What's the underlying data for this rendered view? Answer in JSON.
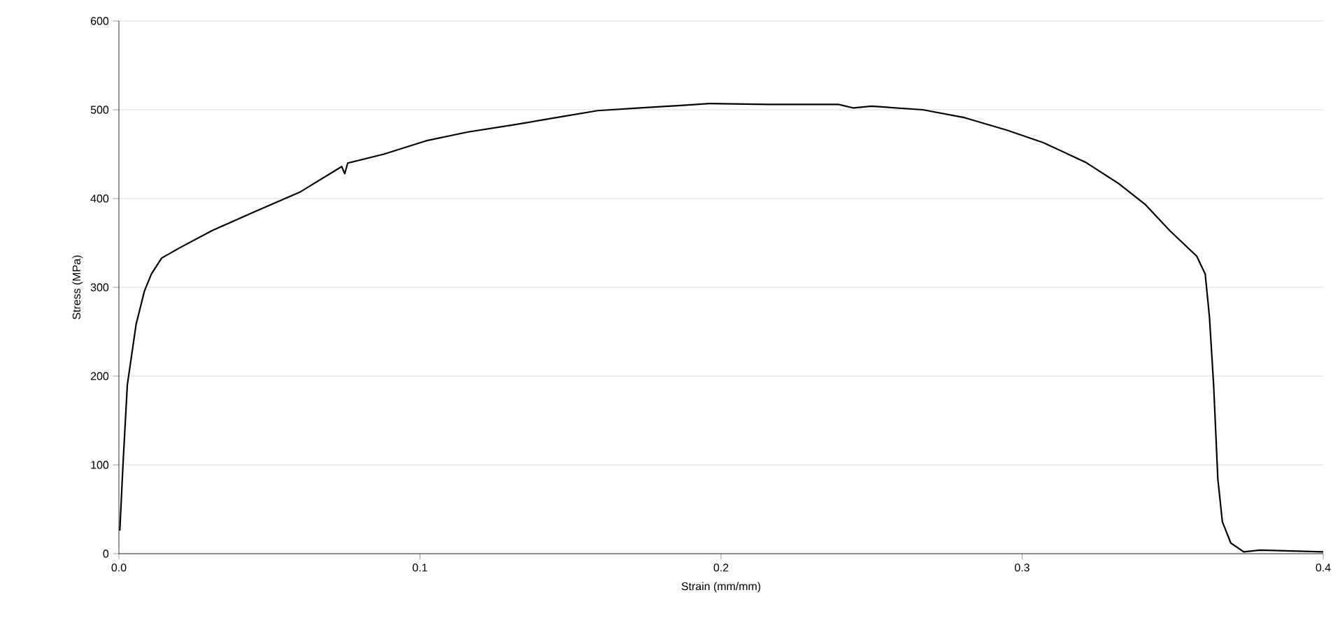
{
  "chart_data": {
    "type": "line",
    "xlabel": "Strain (mm/mm)",
    "ylabel": "Stress (MPa)",
    "x": [
      0.0003,
      0.0014,
      0.0028,
      0.0057,
      0.0085,
      0.0108,
      0.0142,
      0.0199,
      0.031,
      0.045,
      0.06,
      0.074,
      0.075,
      0.076,
      0.088,
      0.102,
      0.116,
      0.131,
      0.145,
      0.159,
      0.173,
      0.1875,
      0.196,
      0.216,
      0.239,
      0.244,
      0.25,
      0.267,
      0.281,
      0.295,
      0.307,
      0.321,
      0.332,
      0.341,
      0.349,
      0.358,
      0.3608,
      0.3622,
      0.3636,
      0.365,
      0.3665,
      0.3693,
      0.3736,
      0.379,
      0.4
    ],
    "series": [
      {
        "color": "#000000",
        "values": [
          26,
          103,
          190,
          258,
          296,
          315,
          333,
          344,
          364,
          385,
          407,
          436,
          428,
          440,
          450,
          465,
          475,
          483,
          491,
          499,
          502,
          505,
          507,
          506,
          506,
          502,
          504,
          500,
          491,
          477,
          463,
          441,
          417,
          393,
          364,
          335,
          315,
          267,
          190,
          84,
          36,
          12,
          2,
          4,
          2
        ]
      }
    ],
    "xlim": [
      0,
      0.4
    ],
    "ylim": [
      0,
      600
    ],
    "xticks": [
      {
        "value": 0,
        "label": "0.0"
      },
      0.1,
      0.2,
      0.3,
      0.4
    ],
    "yticks": [
      0,
      100,
      200,
      300,
      400,
      500,
      600
    ],
    "grid": "y",
    "marker": "none",
    "line_style": "solid"
  }
}
